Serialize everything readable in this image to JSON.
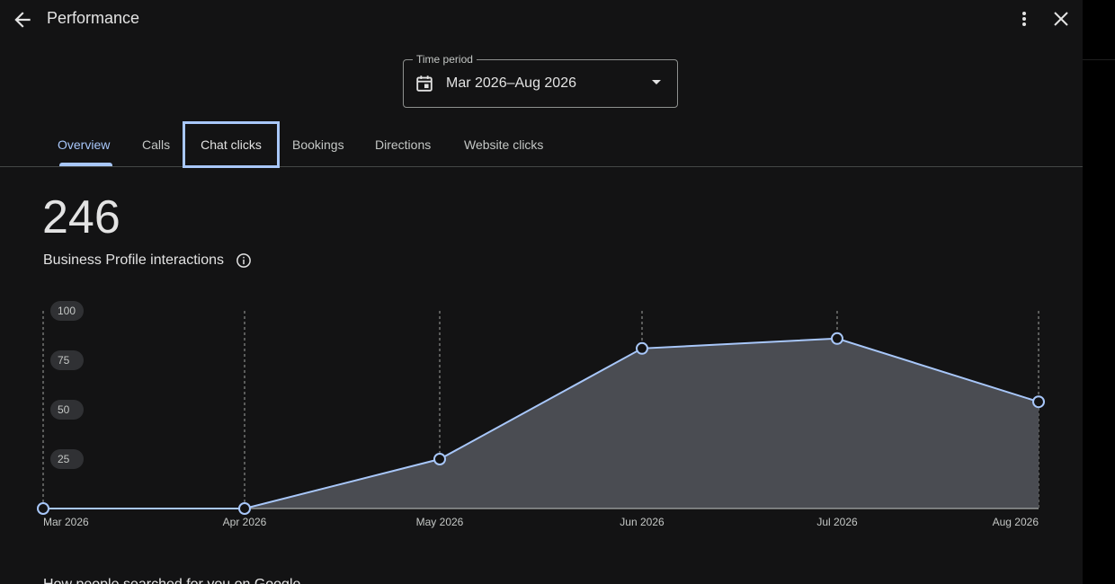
{
  "header": {
    "title": "Performance",
    "back_icon": "arrow-back-icon",
    "more_icon": "more-vert-icon",
    "close_icon": "close-icon"
  },
  "time_period": {
    "label": "Time period",
    "value": "Mar 2026–Aug 2026",
    "icon": "calendar-icon"
  },
  "tabs": [
    {
      "label": "Overview",
      "active": true
    },
    {
      "label": "Calls",
      "active": false
    },
    {
      "label": "Chat clicks",
      "active": false,
      "focused": true
    },
    {
      "label": "Bookings",
      "active": false
    },
    {
      "label": "Directions",
      "active": false
    },
    {
      "label": "Website clicks",
      "active": false
    }
  ],
  "summary": {
    "total": "246",
    "label": "Business Profile interactions",
    "info_icon": "info-icon"
  },
  "chart_data": {
    "type": "area",
    "categories": [
      "Mar 2026",
      "Apr 2026",
      "May 2026",
      "Jun 2026",
      "Jul 2026",
      "Aug 2026"
    ],
    "values": [
      0,
      0,
      25,
      81,
      86,
      54
    ],
    "yticks": [
      "25",
      "50",
      "75",
      "100"
    ],
    "ylim": [
      0,
      100
    ],
    "grid": "vertical-dashed",
    "line_color": "#a8c7fa",
    "fill_color": "#4a4c52"
  },
  "next_section": {
    "heading": "How people searched for you on Google"
  },
  "colors": {
    "background": "#131314",
    "accent": "#a8c7fa",
    "text": "#e3e3e3"
  }
}
